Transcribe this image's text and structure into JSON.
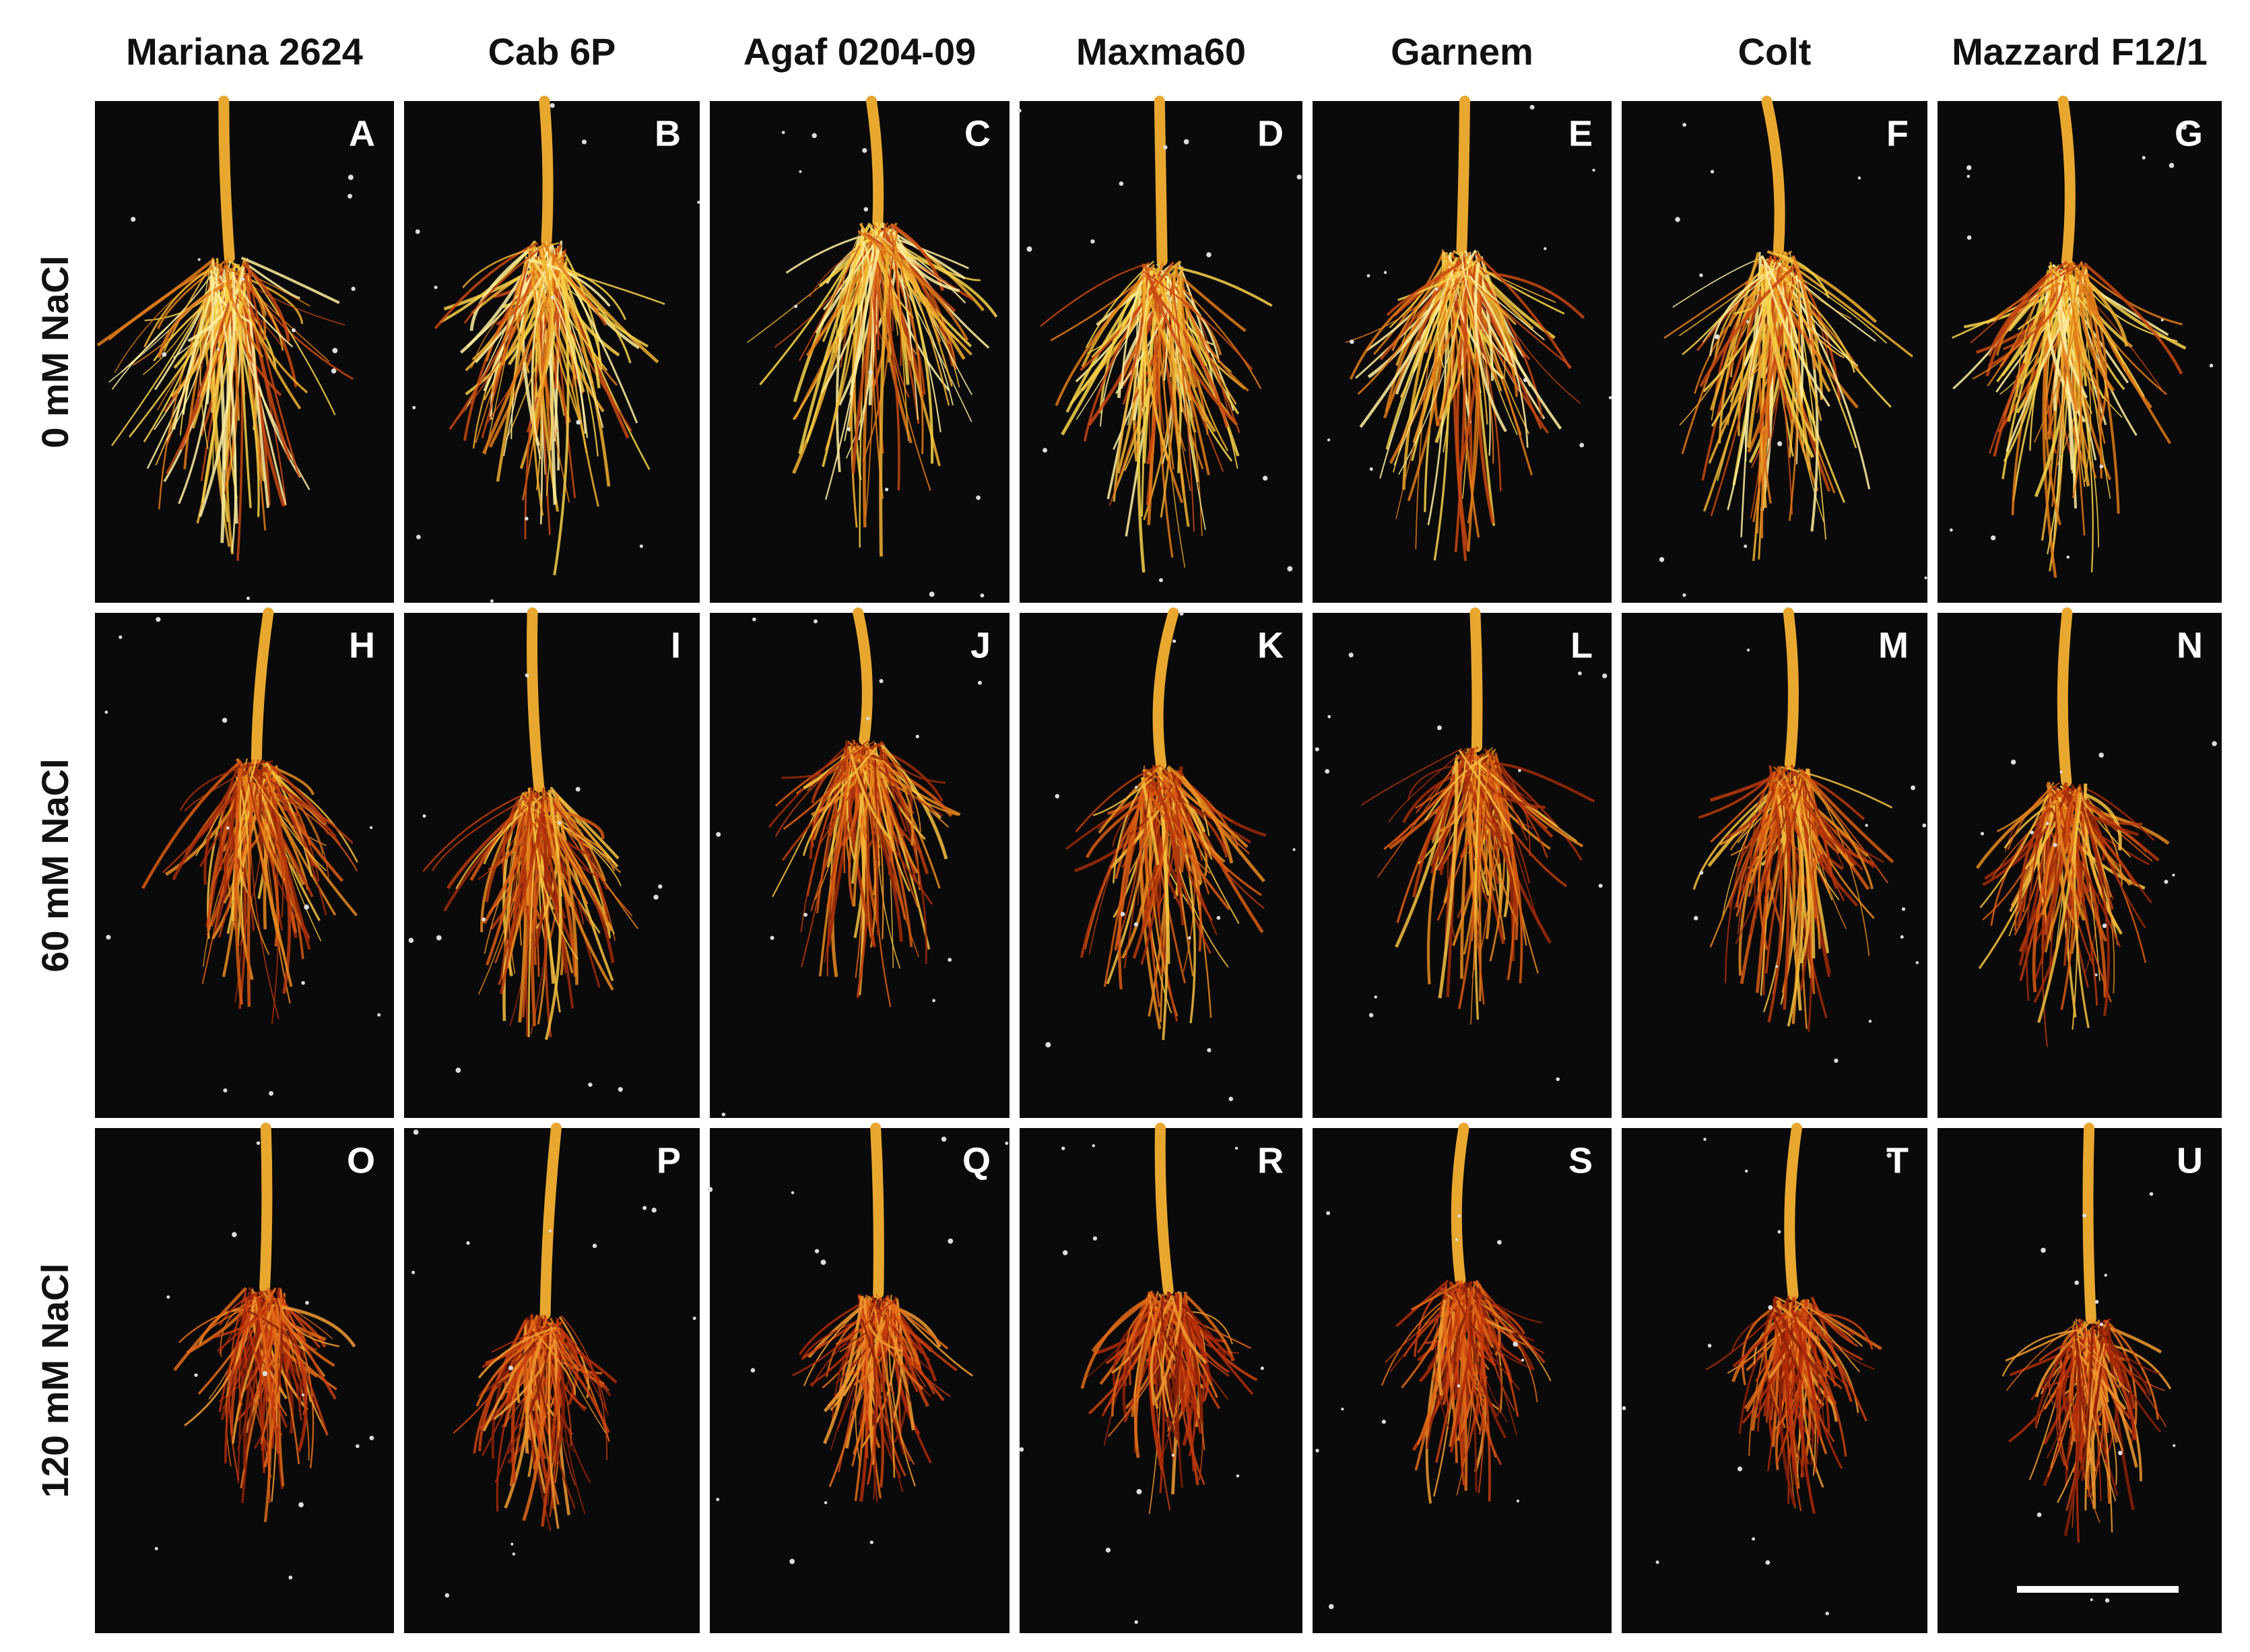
{
  "column_headers": [
    "Mariana 2624",
    "Cab 6P",
    "Agaf 0204-09",
    "Maxma60",
    "Garnem",
    "Colt",
    "Mazzard F12/1"
  ],
  "row_labels": [
    "0 mM NaCl",
    "60 mM NaCl",
    "120 mM NaCl"
  ],
  "panels": [
    [
      "A",
      "B",
      "C",
      "D",
      "E",
      "F",
      "G"
    ],
    [
      "H",
      "I",
      "J",
      "K",
      "L",
      "M",
      "N"
    ],
    [
      "O",
      "P",
      "Q",
      "R",
      "S",
      "T",
      "U"
    ]
  ]
}
